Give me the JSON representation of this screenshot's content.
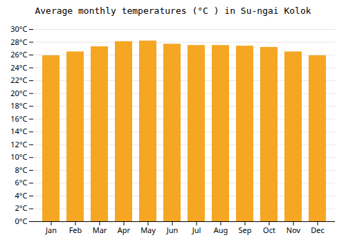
{
  "chart_data": {
    "type": "bar",
    "title": "Average monthly temperatures (°C ) in Su-ngai Kolok",
    "categories": [
      "Jan",
      "Feb",
      "Mar",
      "Apr",
      "May",
      "Jun",
      "Jul",
      "Aug",
      "Sep",
      "Oct",
      "Nov",
      "Dec"
    ],
    "values": [
      25.9,
      26.5,
      27.3,
      28.1,
      28.2,
      27.7,
      27.5,
      27.5,
      27.4,
      27.2,
      26.5,
      25.9
    ],
    "color": "#F5A623",
    "ylim": [
      0,
      30
    ],
    "yticks": [
      {
        "value": 0,
        "label": "0°C"
      },
      {
        "value": 2,
        "label": "2°C"
      },
      {
        "value": 4,
        "label": "4°C"
      },
      {
        "value": 6,
        "label": "6°C"
      },
      {
        "value": 8,
        "label": "8°C"
      },
      {
        "value": 10,
        "label": "10°C"
      },
      {
        "value": 12,
        "label": "12°C"
      },
      {
        "value": 14,
        "label": "14°C"
      },
      {
        "value": 16,
        "label": "16°C"
      },
      {
        "value": 18,
        "label": "18°C"
      },
      {
        "value": 20,
        "label": "20°C"
      },
      {
        "value": 22,
        "label": "22°C"
      },
      {
        "value": 24,
        "label": "24°C"
      },
      {
        "value": 26,
        "label": "26°C"
      },
      {
        "value": 28,
        "label": "28°C"
      },
      {
        "value": 30,
        "label": "30°C"
      }
    ],
    "grid": true
  }
}
